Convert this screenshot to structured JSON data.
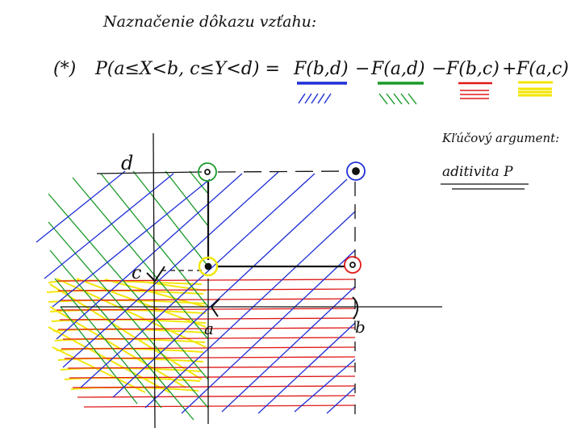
{
  "title": "Naznačenie dôkazu vzťahu:",
  "formula": {
    "number": "(*)",
    "lhs": "P(a≤X<b, c≤Y<d) =",
    "terms": [
      {
        "text": "F(b,d)",
        "op": "",
        "color": "#1f2fd6",
        "mark": "////"
      },
      {
        "text": "F(a,d)",
        "op": "−",
        "color": "#1a9a2a",
        "mark": "\\\\\\\\"
      },
      {
        "text": "F(b,c)",
        "op": "−",
        "color": "#e01818",
        "mark": "≡"
      },
      {
        "text": "F(a,c)",
        "op": "+",
        "color": "#f2e600",
        "mark": "▬"
      }
    ]
  },
  "note": {
    "line1": "Kľúčový argument:",
    "line2": "aditivita P"
  },
  "diagram": {
    "labels": {
      "d": "d",
      "c": "c",
      "a": "a",
      "b": "b"
    },
    "colors": {
      "blue": "#1f2fd6",
      "green": "#1a9a2a",
      "red": "#e01818",
      "yellow": "#f2e600",
      "ink": "#111111"
    }
  }
}
